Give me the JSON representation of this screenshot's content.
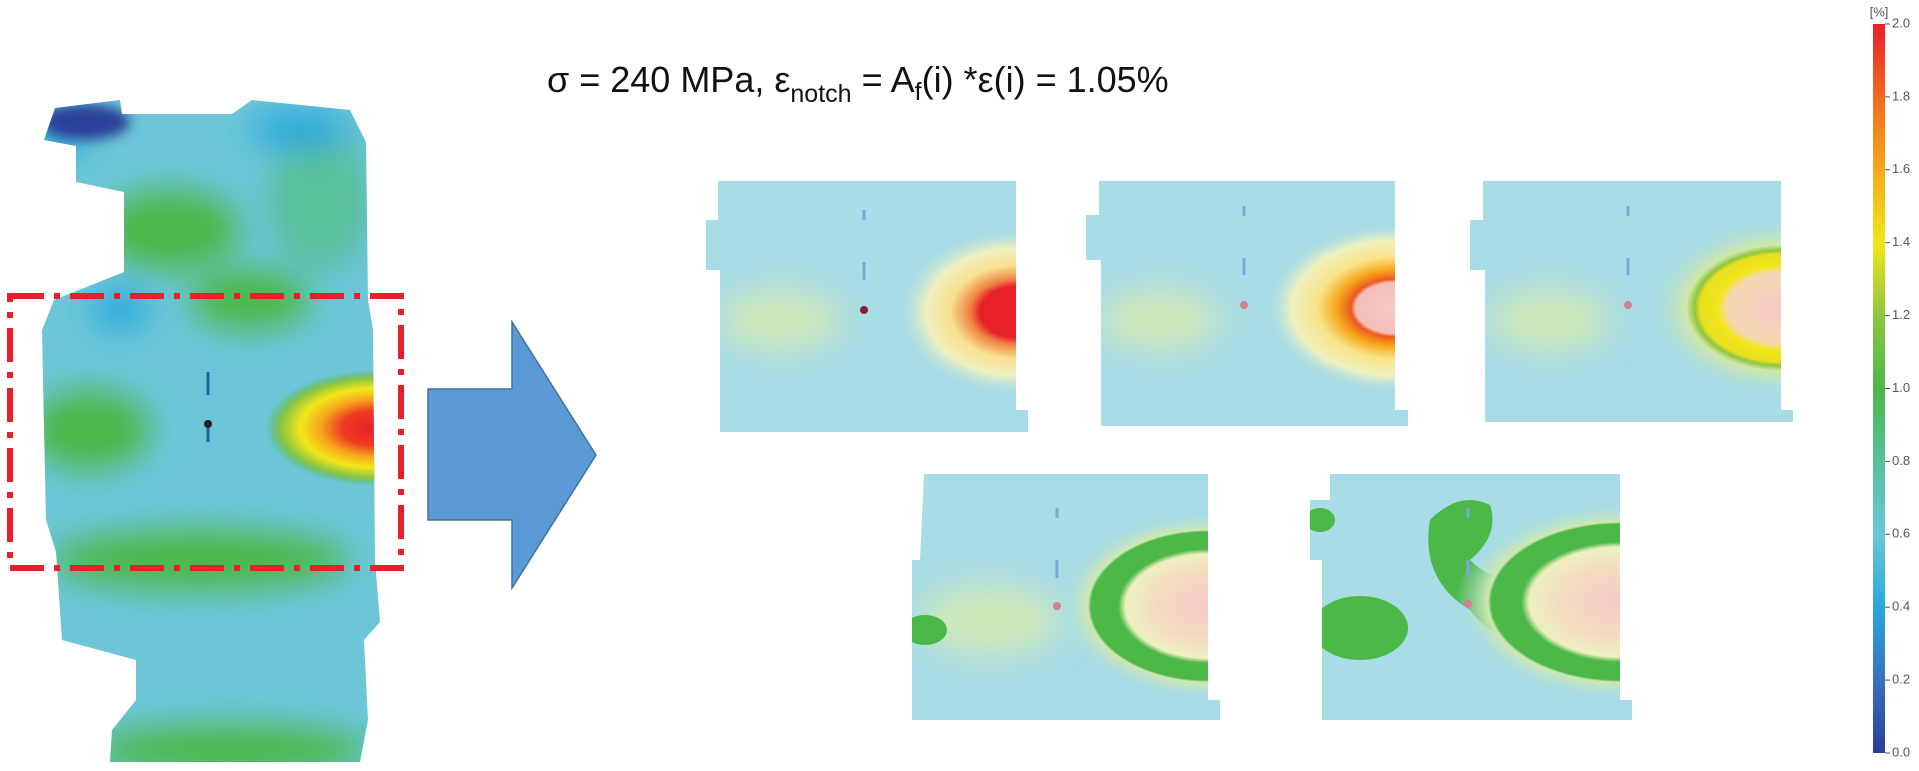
{
  "title": {
    "lead": "σ = 240 MPa, ε",
    "sub1": "notch",
    "mid": " = A",
    "sub2": "f",
    "tail": "(i) *ε(i) = 1.05%"
  },
  "colorbar": {
    "label": "[%]",
    "lim": [
      0,
      2
    ],
    "ticks": [
      {
        "value": 0,
        "label": "0.0"
      },
      {
        "value": 0.2,
        "label": "0.2"
      },
      {
        "value": 0.4,
        "label": "0.4"
      },
      {
        "value": 0.6,
        "label": "0.6"
      },
      {
        "value": 0.8,
        "label": "0.8"
      },
      {
        "value": 1,
        "label": "1.0"
      },
      {
        "value": 1.2,
        "label": "1.2"
      },
      {
        "value": 1.4,
        "label": "1.4"
      },
      {
        "value": 1.6,
        "label": "1.6"
      },
      {
        "value": 1.8,
        "label": "1.8"
      },
      {
        "value": 2,
        "label": "2.0"
      }
    ]
  }
}
